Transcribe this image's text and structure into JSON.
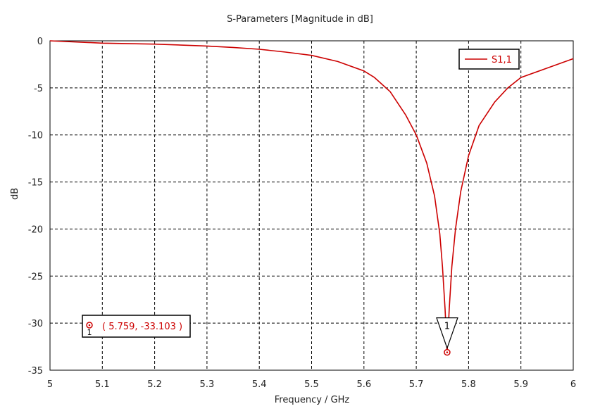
{
  "chart_data": {
    "type": "line",
    "title": "S-Parameters [Magnitude in dB]",
    "xlabel": "Frequency / GHz",
    "ylabel": "dB",
    "xlim": [
      5,
      6
    ],
    "ylim": [
      -35,
      0
    ],
    "xticks": [
      5,
      5.1,
      5.2,
      5.3,
      5.4,
      5.5,
      5.6,
      5.7,
      5.8,
      5.9,
      6
    ],
    "xtick_labels": [
      "5",
      "5.1",
      "5.2",
      "5.3",
      "5.4",
      "5.5",
      "5.6",
      "5.7",
      "5.8",
      "5.9",
      "6"
    ],
    "yticks": [
      0,
      -5,
      -10,
      -15,
      -20,
      -25,
      -30,
      -35
    ],
    "ytick_labels": [
      "0",
      "-5",
      "-10",
      "-15",
      "-20",
      "-25",
      "-30",
      "-35"
    ],
    "grid": true,
    "legend_position": "top-right",
    "series": [
      {
        "name": "S1,1",
        "color": "#cc0000",
        "x": [
          5.0,
          5.1,
          5.2,
          5.3,
          5.35,
          5.4,
          5.45,
          5.5,
          5.55,
          5.6,
          5.62,
          5.65,
          5.68,
          5.7,
          5.72,
          5.735,
          5.745,
          5.75,
          5.755,
          5.759,
          5.763,
          5.768,
          5.775,
          5.785,
          5.8,
          5.82,
          5.85,
          5.875,
          5.9,
          5.95,
          6.0
        ],
        "y": [
          0.0,
          -0.25,
          -0.35,
          -0.55,
          -0.7,
          -0.9,
          -1.2,
          -1.55,
          -2.2,
          -3.2,
          -3.9,
          -5.4,
          -7.9,
          -10.0,
          -13.0,
          -16.5,
          -20.5,
          -24.0,
          -28.5,
          -33.103,
          -28.5,
          -24.0,
          -20.0,
          -16.0,
          -12.2,
          -9.0,
          -6.5,
          -5.0,
          -3.9,
          -2.9,
          -1.9
        ]
      }
    ],
    "marker": {
      "id": "1",
      "x": 5.759,
      "y": -33.103,
      "label_text": "( 5.759, -33.103 )",
      "color": "#cc0000"
    }
  }
}
